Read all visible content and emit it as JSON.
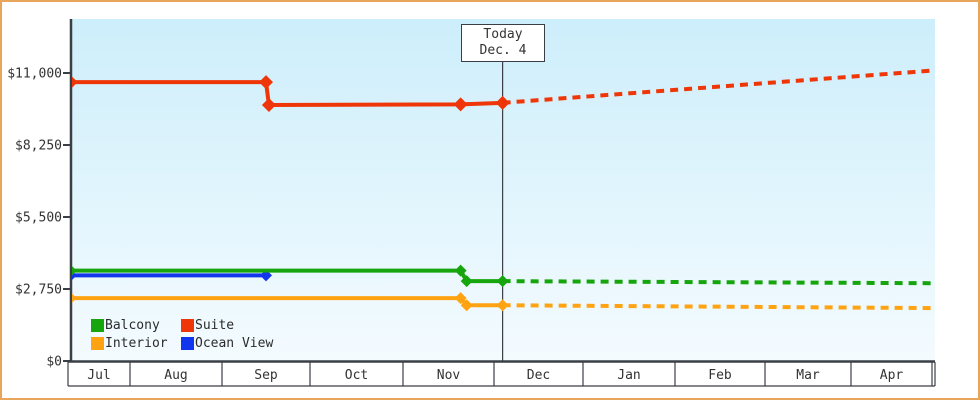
{
  "theme": {
    "frame_border": "#e8a55c",
    "plot_gradient_top": "#cdeefb",
    "plot_gradient_bottom": "#f4fbff",
    "axis_color": "#3a3f45",
    "text_color": "#333333"
  },
  "chart_data": {
    "type": "line",
    "title": "",
    "ylabel": "",
    "xlabel": "",
    "grid": false,
    "y_axis": {
      "min": 0,
      "max": 11000,
      "tick_values": [
        0,
        2750,
        5500,
        8250,
        11000
      ],
      "tick_labels": [
        "$0",
        "$2,750",
        "$5,500",
        "$8,250",
        "$11,000"
      ]
    },
    "x_axis": {
      "months": [
        "Jul",
        "Aug",
        "Sep",
        "Oct",
        "Nov",
        "Dec",
        "Jan",
        "Feb",
        "Mar",
        "Apr"
      ],
      "visible_start": "Jul 12",
      "visible_end": "May 2"
    },
    "today": {
      "label_line1": "Today",
      "label_line2": "Dec. 4",
      "date": "Dec 4"
    },
    "series": [
      {
        "name": "Ocean View",
        "color": "#1136ee",
        "solid": [
          [
            "Jul 12",
            3270
          ],
          [
            "Sep 16",
            3270
          ]
        ],
        "projected": [],
        "markers": [
          [
            "Jul 12",
            3270
          ],
          [
            "Sep 16",
            3270
          ]
        ]
      },
      {
        "name": "Interior",
        "color": "#ffa313",
        "solid": [
          [
            "Jul 12",
            2400
          ],
          [
            "Nov 20",
            2400
          ],
          [
            "Nov 22",
            2130
          ],
          [
            "Dec 4",
            2130
          ]
        ],
        "projected": [
          [
            "Dec 4",
            2130
          ],
          [
            "May 2",
            2020
          ]
        ],
        "markers": [
          [
            "Jul 12",
            2400
          ],
          [
            "Nov 20",
            2400
          ],
          [
            "Nov 22",
            2130
          ],
          [
            "Dec 4",
            2130
          ]
        ]
      },
      {
        "name": "Balcony",
        "color": "#16a50c",
        "solid": [
          [
            "Jul 12",
            3450
          ],
          [
            "Nov 20",
            3450
          ],
          [
            "Nov 22",
            3050
          ],
          [
            "Dec 4",
            3050
          ]
        ],
        "projected": [
          [
            "Dec 4",
            3050
          ],
          [
            "May 2",
            2970
          ]
        ],
        "markers": [
          [
            "Jul 12",
            3450
          ],
          [
            "Nov 20",
            3450
          ],
          [
            "Nov 22",
            3050
          ],
          [
            "Dec 4",
            3050
          ]
        ]
      },
      {
        "name": "Suite",
        "color": "#ee3608",
        "solid": [
          [
            "Jul 12",
            10650
          ],
          [
            "Sep 16",
            10650
          ],
          [
            "Sep 17",
            9780
          ],
          [
            "Nov 20",
            9800
          ],
          [
            "Dec 4",
            9860
          ]
        ],
        "projected": [
          [
            "Dec 4",
            9860
          ],
          [
            "May 2",
            11100
          ]
        ],
        "markers": [
          [
            "Jul 12",
            10650
          ],
          [
            "Sep 16",
            10650
          ],
          [
            "Sep 17",
            9780
          ],
          [
            "Nov 20",
            9800
          ],
          [
            "Dec 4",
            9860
          ]
        ]
      }
    ],
    "legend": [
      [
        {
          "label": "Balcony",
          "color": "#16a50c"
        },
        {
          "label": "Suite",
          "color": "#ee3608"
        }
      ],
      [
        {
          "label": "Interior",
          "color": "#ffa313"
        },
        {
          "label": "Ocean View",
          "color": "#1136ee"
        }
      ]
    ],
    "legend_position": "bottom-left-inside"
  }
}
